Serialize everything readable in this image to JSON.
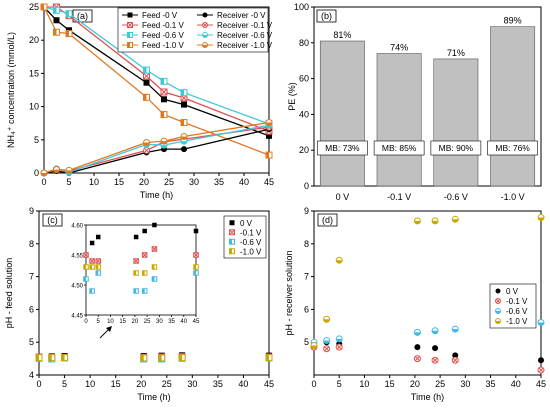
{
  "chart_data": [
    {
      "panel": "(a)",
      "type": "line",
      "xlabel": "Time (h)",
      "ylabel": "NH₄⁺ concentration (mmol/L)",
      "xlim": [
        0,
        45
      ],
      "ylim": [
        0,
        25
      ],
      "xticks": [
        0,
        5,
        10,
        15,
        20,
        25,
        30,
        35,
        40,
        45
      ],
      "yticks": [
        0,
        5,
        10,
        15,
        20,
        25
      ],
      "legend_position": "top-right",
      "series": [
        {
          "name": "Feed -0 V",
          "color": "#000000",
          "marker": "square",
          "x": [
            0,
            2.5,
            5,
            20.5,
            24,
            28,
            45
          ],
          "y": [
            25,
            23,
            21.5,
            13.6,
            11.1,
            10.3,
            5.6
          ]
        },
        {
          "name": "Feed -0.1 V",
          "color": "#e05050",
          "marker": "square-x",
          "x": [
            0,
            2.5,
            5,
            20.5,
            24,
            28,
            45
          ],
          "y": [
            25,
            25,
            23.7,
            14.6,
            12.2,
            11.3,
            6.3
          ]
        },
        {
          "name": "Feed -0.6 V",
          "color": "#40c8d8",
          "marker": "square-half",
          "x": [
            0,
            2.5,
            5,
            20.5,
            24,
            28,
            45
          ],
          "y": [
            25,
            24.5,
            24,
            15.5,
            13.8,
            12.1,
            7.4
          ]
        },
        {
          "name": "Feed -1.0 V",
          "color": "#e07820",
          "marker": "square-half",
          "x": [
            0,
            2.5,
            5,
            20.5,
            24,
            28,
            45
          ],
          "y": [
            25,
            21.2,
            21,
            11.4,
            8.8,
            7.6,
            2.7
          ]
        },
        {
          "name": "Receiver -0 V",
          "color": "#000000",
          "marker": "circle",
          "x": [
            0,
            2.5,
            5,
            20.5,
            24,
            28,
            45
          ],
          "y": [
            0,
            0.3,
            0,
            3.1,
            3.6,
            3.6,
            6.6
          ]
        },
        {
          "name": "Receiver -0.1 V",
          "color": "#e05050",
          "marker": "circle-x",
          "x": [
            0,
            2.5,
            5,
            20.5,
            24,
            28,
            45
          ],
          "y": [
            0,
            0.6,
            0.3,
            3.4,
            4.7,
            5.1,
            6.9
          ]
        },
        {
          "name": "Receiver -0.6 V",
          "color": "#40c8d8",
          "marker": "circle-half",
          "x": [
            0,
            2.5,
            5,
            20.5,
            24,
            28,
            45
          ],
          "y": [
            0,
            0.6,
            0.1,
            4.3,
            4.2,
            4.8,
            7.2
          ]
        },
        {
          "name": "Receiver -1.0 V",
          "color": "#e07820",
          "marker": "circle-half",
          "x": [
            0,
            2.5,
            5,
            20.5,
            24,
            28,
            45
          ],
          "y": [
            0,
            0.5,
            0.4,
            4.6,
            4.8,
            5.5,
            7.6
          ]
        }
      ]
    },
    {
      "panel": "(b)",
      "type": "bar",
      "ylabel": "PE (%)",
      "ylim": [
        0,
        100
      ],
      "yticks": [
        0,
        20,
        40,
        60,
        80,
        100
      ],
      "categories": [
        "0 V",
        "-0.1 V",
        "-0.6 V",
        "-1.0 V"
      ],
      "values": [
        81,
        74,
        71,
        89
      ],
      "value_labels": [
        "81%",
        "74%",
        "71%",
        "89%"
      ],
      "mb_labels": [
        "MB: 73%",
        "MB: 85%",
        "MB: 90%",
        "MB: 76%"
      ],
      "bar_color": "#c0c0c0"
    },
    {
      "panel": "(c)",
      "type": "scatter",
      "xlabel": "Time (h)",
      "ylabel": "pH - feed solution",
      "xlim": [
        0,
        45
      ],
      "ylim": [
        4,
        9
      ],
      "xticks": [
        0,
        5,
        10,
        15,
        20,
        25,
        30,
        35,
        40,
        45
      ],
      "yticks": [
        4,
        5,
        6,
        7,
        8,
        9
      ],
      "legend_position": "top-right",
      "series": [
        {
          "name": "0 V",
          "color": "#000000",
          "marker": "square",
          "x": [
            0,
            2.5,
            5,
            20.5,
            24,
            28,
            45
          ],
          "y": [
            4.55,
            4.57,
            4.58,
            4.58,
            4.59,
            4.6,
            4.59
          ]
        },
        {
          "name": "-0.1 V",
          "color": "#e05050",
          "marker": "square-x",
          "x": [
            0,
            2.5,
            5,
            20.5,
            24,
            28,
            45
          ],
          "y": [
            4.55,
            4.54,
            4.54,
            4.54,
            4.55,
            4.56,
            4.55
          ]
        },
        {
          "name": "-0.6 V",
          "color": "#40b8e8",
          "marker": "square-half",
          "x": [
            0,
            2.5,
            5,
            20.5,
            24,
            28,
            45
          ],
          "y": [
            4.51,
            4.49,
            4.52,
            4.49,
            4.49,
            4.51,
            4.52
          ]
        },
        {
          "name": "-1.0 V",
          "color": "#c8a800",
          "marker": "square-half",
          "x": [
            0,
            2.5,
            5,
            20.5,
            24,
            28,
            45
          ],
          "y": [
            4.53,
            4.53,
            4.53,
            4.52,
            4.52,
            4.53,
            4.53
          ]
        }
      ],
      "inset": {
        "xlim": [
          0,
          45
        ],
        "ylim": [
          4.45,
          4.6
        ],
        "xticks": [
          0,
          5,
          10,
          15,
          20,
          25,
          30,
          35,
          40,
          45
        ],
        "yticks": [
          4.45,
          4.5,
          4.55,
          4.6
        ],
        "ytick_labels": [
          "4.45",
          "4.50",
          "4.55",
          "4.60"
        ]
      }
    },
    {
      "panel": "(d)",
      "type": "scatter",
      "xlabel": "Time (h)",
      "ylabel": "pH - receiver solution",
      "xlim": [
        0,
        45
      ],
      "ylim": [
        4,
        9
      ],
      "xticks": [
        0,
        5,
        10,
        15,
        20,
        25,
        30,
        35,
        40,
        45
      ],
      "yticks": [
        5,
        6,
        7,
        8,
        9
      ],
      "legend_position": "right",
      "series": [
        {
          "name": "0 V",
          "color": "#000000",
          "marker": "circle",
          "x": [
            0,
            2.5,
            5,
            20.5,
            24,
            28,
            45
          ],
          "y": [
            4.85,
            5.0,
            4.95,
            4.85,
            4.82,
            4.6,
            4.45
          ]
        },
        {
          "name": "-0.1 V",
          "color": "#e05050",
          "marker": "circle-x",
          "x": [
            0,
            2.5,
            5,
            20.5,
            24,
            28,
            45
          ],
          "y": [
            4.85,
            4.8,
            4.85,
            4.5,
            4.45,
            4.45,
            4.15
          ]
        },
        {
          "name": "-0.6 V",
          "color": "#40b8e8",
          "marker": "circle-half",
          "x": [
            0,
            2.5,
            5,
            20.5,
            24,
            28,
            45
          ],
          "y": [
            5.0,
            5.05,
            5.1,
            5.3,
            5.35,
            5.4,
            5.6
          ]
        },
        {
          "name": "-1.0 V",
          "color": "#c8a800",
          "marker": "circle-half",
          "x": [
            0,
            2.5,
            5,
            20.5,
            24,
            28,
            45
          ],
          "y": [
            4.9,
            5.7,
            7.5,
            8.7,
            8.7,
            8.75,
            8.8
          ]
        }
      ]
    }
  ]
}
